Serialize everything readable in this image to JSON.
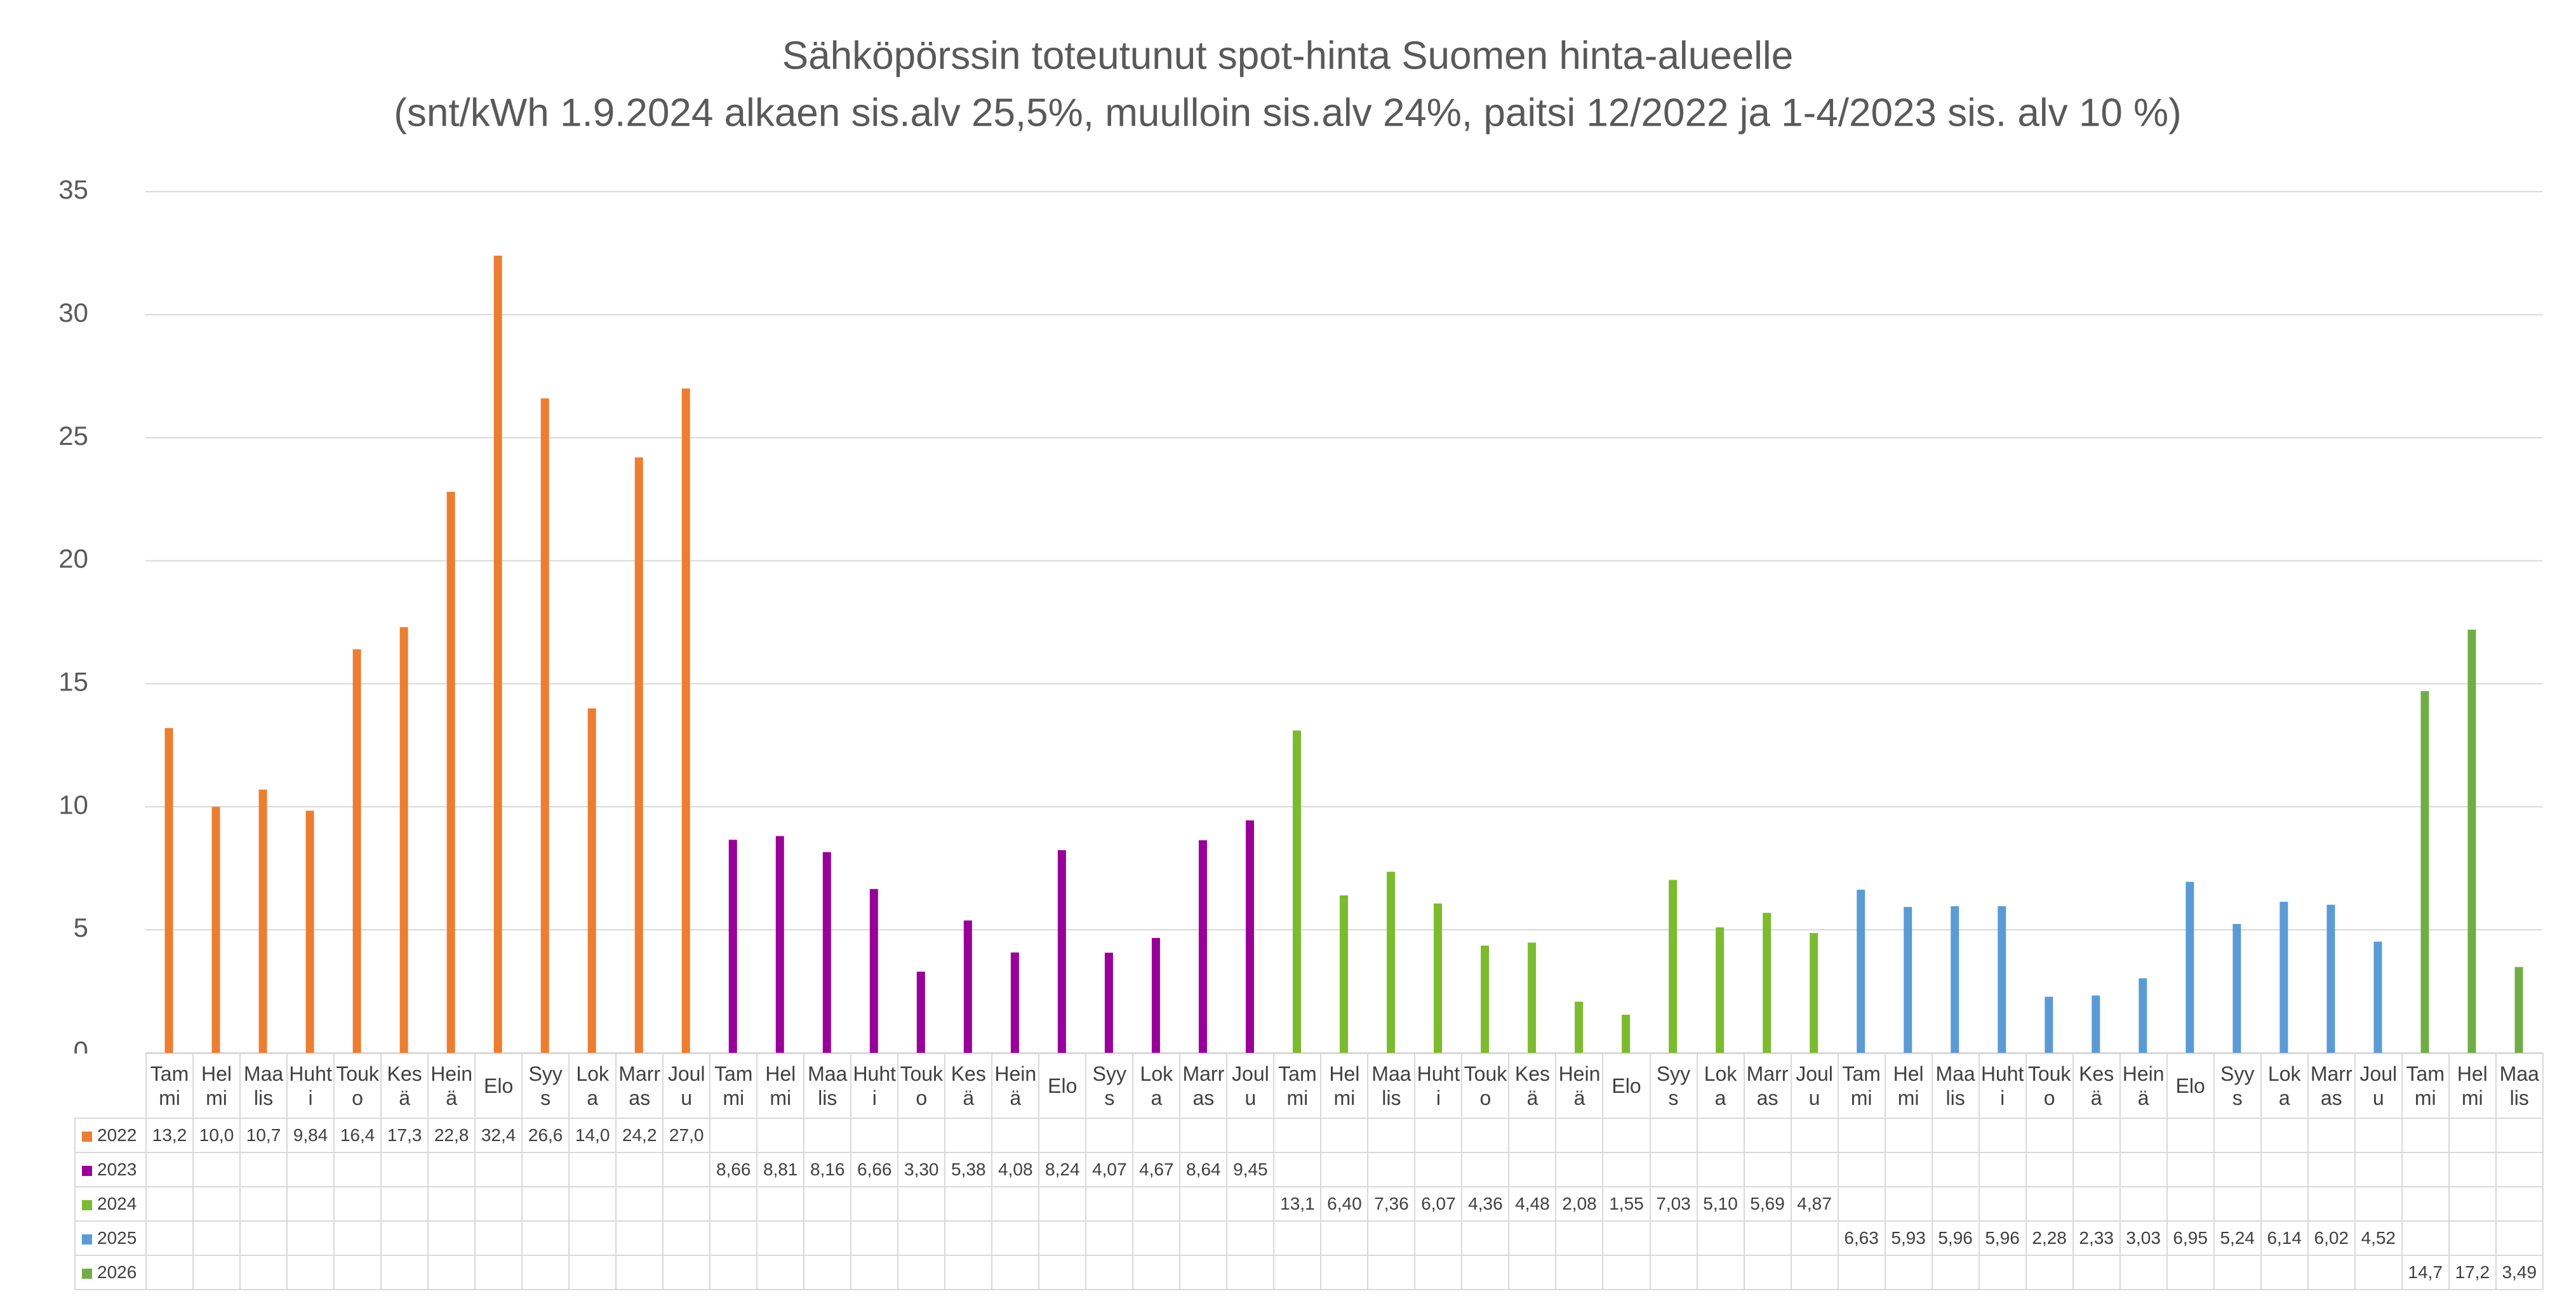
{
  "chart_data": {
    "type": "bar",
    "title": "Sähköpörssin toteutunut spot-hinta Suomen hinta-alueelle",
    "subtitle": "(snt/kWh 1.9.2024 alkaen sis.alv 25,5%, muulloin sis.alv 24%, paitsi 12/2022 ja 1-4/2023 sis. alv 10 %)",
    "categories": [
      "Tammi",
      "Helmi",
      "Maalis",
      "Huhti",
      "Touko",
      "Kesä",
      "Heinä",
      "Elo",
      "Syys",
      "Loka",
      "Marras",
      "Joulu",
      "Tammi",
      "Helmi",
      "Maalis",
      "Huhti",
      "Touko",
      "Kesä",
      "Heinä",
      "Elo",
      "Syys",
      "Loka",
      "Marras",
      "Joulu",
      "Tammi",
      "Helmi",
      "Maalis",
      "Huhti",
      "Touko",
      "Kesä",
      "Heinä",
      "Elo",
      "Syys",
      "Loka",
      "Marras",
      "Joulu",
      "Tammi",
      "Helmi",
      "Maalis",
      "Huhti",
      "Touko",
      "Kesä",
      "Heinä",
      "Elo",
      "Syys",
      "Loka",
      "Marras",
      "Joulu",
      "Tammi",
      "Helmi",
      "Maalis"
    ],
    "series": [
      {
        "name": "2022",
        "color": "#ed7d31",
        "values": [
          13.2,
          10.0,
          10.7,
          9.84,
          16.4,
          17.3,
          22.8,
          32.4,
          26.6,
          14.0,
          24.2,
          27.0,
          null,
          null,
          null,
          null,
          null,
          null,
          null,
          null,
          null,
          null,
          null,
          null,
          null,
          null,
          null,
          null,
          null,
          null,
          null,
          null,
          null,
          null,
          null,
          null,
          null,
          null,
          null,
          null,
          null,
          null,
          null,
          null,
          null,
          null,
          null,
          null,
          null,
          null,
          null
        ],
        "value_labels": [
          "13,2",
          "10,0",
          "10,7",
          "9,84",
          "16,4",
          "17,3",
          "22,8",
          "32,4",
          "26,6",
          "14,0",
          "24,2",
          "27,0",
          null,
          null,
          null,
          null,
          null,
          null,
          null,
          null,
          null,
          null,
          null,
          null,
          null,
          null,
          null,
          null,
          null,
          null,
          null,
          null,
          null,
          null,
          null,
          null,
          null,
          null,
          null,
          null,
          null,
          null,
          null,
          null,
          null,
          null,
          null,
          null,
          null,
          null,
          null
        ]
      },
      {
        "name": "2023",
        "color": "#990099",
        "values": [
          null,
          null,
          null,
          null,
          null,
          null,
          null,
          null,
          null,
          null,
          null,
          null,
          8.66,
          8.81,
          8.16,
          6.66,
          3.3,
          5.38,
          4.08,
          8.24,
          4.07,
          4.67,
          8.64,
          9.45,
          null,
          null,
          null,
          null,
          null,
          null,
          null,
          null,
          null,
          null,
          null,
          null,
          null,
          null,
          null,
          null,
          null,
          null,
          null,
          null,
          null,
          null,
          null,
          null,
          null,
          null,
          null
        ],
        "value_labels": [
          null,
          null,
          null,
          null,
          null,
          null,
          null,
          null,
          null,
          null,
          null,
          null,
          "8,66",
          "8,81",
          "8,16",
          "6,66",
          "3,30",
          "5,38",
          "4,08",
          "8,24",
          "4,07",
          "4,67",
          "8,64",
          "9,45",
          null,
          null,
          null,
          null,
          null,
          null,
          null,
          null,
          null,
          null,
          null,
          null,
          null,
          null,
          null,
          null,
          null,
          null,
          null,
          null,
          null,
          null,
          null,
          null,
          null,
          null,
          null
        ]
      },
      {
        "name": "2024",
        "color": "#7cbb2e",
        "values": [
          null,
          null,
          null,
          null,
          null,
          null,
          null,
          null,
          null,
          null,
          null,
          null,
          null,
          null,
          null,
          null,
          null,
          null,
          null,
          null,
          null,
          null,
          null,
          null,
          13.1,
          6.4,
          7.36,
          6.07,
          4.36,
          4.48,
          2.08,
          1.55,
          7.03,
          5.1,
          5.69,
          4.87,
          null,
          null,
          null,
          null,
          null,
          null,
          null,
          null,
          null,
          null,
          null,
          null,
          null,
          null,
          null
        ],
        "value_labels": [
          null,
          null,
          null,
          null,
          null,
          null,
          null,
          null,
          null,
          null,
          null,
          null,
          null,
          null,
          null,
          null,
          null,
          null,
          null,
          null,
          null,
          null,
          null,
          null,
          "13,1",
          "6,40",
          "7,36",
          "6,07",
          "4,36",
          "4,48",
          "2,08",
          "1,55",
          "7,03",
          "5,10",
          "5,69",
          "4,87",
          null,
          null,
          null,
          null,
          null,
          null,
          null,
          null,
          null,
          null,
          null,
          null,
          null,
          null,
          null
        ]
      },
      {
        "name": "2025",
        "color": "#5b9bd5",
        "values": [
          null,
          null,
          null,
          null,
          null,
          null,
          null,
          null,
          null,
          null,
          null,
          null,
          null,
          null,
          null,
          null,
          null,
          null,
          null,
          null,
          null,
          null,
          null,
          null,
          null,
          null,
          null,
          null,
          null,
          null,
          null,
          null,
          null,
          null,
          null,
          null,
          6.63,
          5.93,
          5.96,
          5.96,
          2.28,
          2.33,
          3.03,
          6.95,
          5.24,
          6.14,
          6.02,
          4.52,
          null,
          null,
          null
        ],
        "value_labels": [
          null,
          null,
          null,
          null,
          null,
          null,
          null,
          null,
          null,
          null,
          null,
          null,
          null,
          null,
          null,
          null,
          null,
          null,
          null,
          null,
          null,
          null,
          null,
          null,
          null,
          null,
          null,
          null,
          null,
          null,
          null,
          null,
          null,
          null,
          null,
          null,
          "6,63",
          "5,93",
          "5,96",
          "5,96",
          "2,28",
          "2,33",
          "3,03",
          "6,95",
          "5,24",
          "6,14",
          "6,02",
          "4,52",
          null,
          null,
          null
        ]
      },
      {
        "name": "2026",
        "color": "#70ad47",
        "values": [
          null,
          null,
          null,
          null,
          null,
          null,
          null,
          null,
          null,
          null,
          null,
          null,
          null,
          null,
          null,
          null,
          null,
          null,
          null,
          null,
          null,
          null,
          null,
          null,
          null,
          null,
          null,
          null,
          null,
          null,
          null,
          null,
          null,
          null,
          null,
          null,
          null,
          null,
          null,
          null,
          null,
          null,
          null,
          null,
          null,
          null,
          null,
          null,
          14.7,
          17.2,
          3.49
        ],
        "value_labels": [
          null,
          null,
          null,
          null,
          null,
          null,
          null,
          null,
          null,
          null,
          null,
          null,
          null,
          null,
          null,
          null,
          null,
          null,
          null,
          null,
          null,
          null,
          null,
          null,
          null,
          null,
          null,
          null,
          null,
          null,
          null,
          null,
          null,
          null,
          null,
          null,
          null,
          null,
          null,
          null,
          null,
          null,
          null,
          null,
          null,
          null,
          null,
          null,
          "14,7",
          "17,2",
          "3,49"
        ]
      }
    ],
    "ylim": [
      0,
      35
    ],
    "yticks": [
      0,
      5,
      10,
      15,
      20,
      25,
      30,
      35
    ],
    "grid": true
  }
}
